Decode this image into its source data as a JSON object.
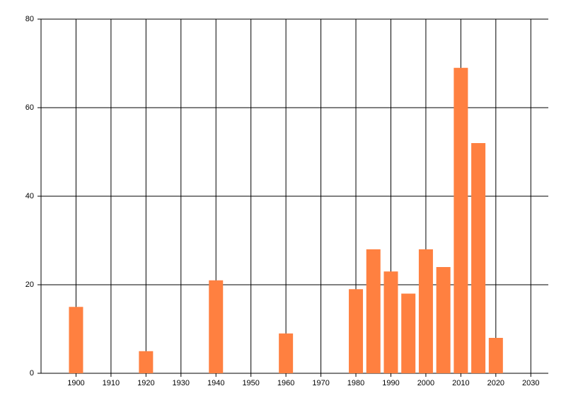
{
  "chart_data": {
    "type": "bar",
    "x": [
      1900,
      1920,
      1940,
      1960,
      1980,
      1985,
      1990,
      1995,
      2000,
      2005,
      2010,
      2015,
      2020
    ],
    "values": [
      15,
      5,
      21,
      9,
      19,
      28,
      23,
      18,
      28,
      24,
      69,
      52,
      8
    ],
    "color": "#ff8040",
    "xlim": [
      1890,
      2035
    ],
    "xticks": [
      1900,
      1910,
      1920,
      1930,
      1940,
      1950,
      1960,
      1970,
      1980,
      1990,
      2000,
      2010,
      2020,
      2030
    ],
    "ylim": [
      0,
      80
    ],
    "yticks": [
      0,
      20,
      40,
      60,
      80
    ],
    "grid": true
  }
}
